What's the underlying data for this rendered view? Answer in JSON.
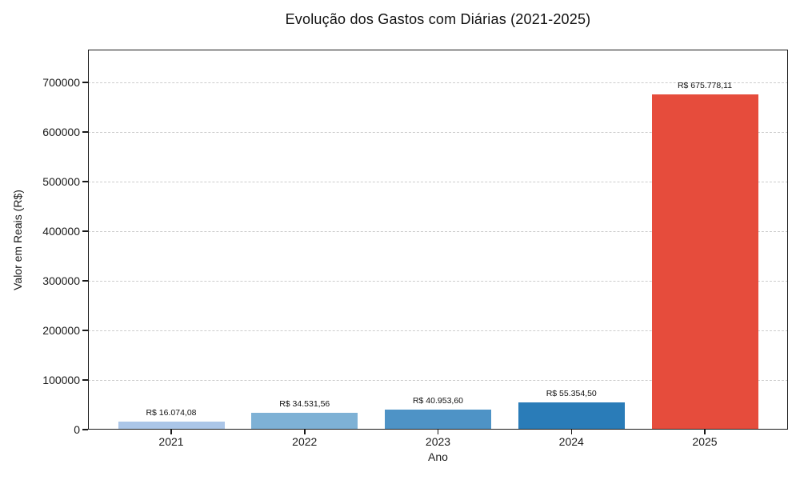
{
  "chart_data": {
    "type": "bar",
    "title": "Evolução dos Gastos com Diárias (2021-2025)",
    "xlabel": "Ano",
    "ylabel": "Valor em Reais (R$)",
    "categories": [
      "2021",
      "2022",
      "2023",
      "2024",
      "2025"
    ],
    "values": [
      16074.08,
      34531.56,
      40953.6,
      55354.5,
      675778.11
    ],
    "value_labels": [
      "R$ 16.074,08",
      "R$ 34.531,56",
      "R$ 40.953,60",
      "R$ 55.354,50",
      "R$ 675.778,11"
    ],
    "bar_colors": [
      "#abc6e8",
      "#7eb1d5",
      "#4e93c6",
      "#2a7cb8",
      "#e64c3c"
    ],
    "yticks": [
      0,
      100000,
      200000,
      300000,
      400000,
      500000,
      600000,
      700000
    ],
    "ylim": [
      0,
      766000
    ],
    "grid": "horizontal-dashed",
    "legend": "none"
  }
}
